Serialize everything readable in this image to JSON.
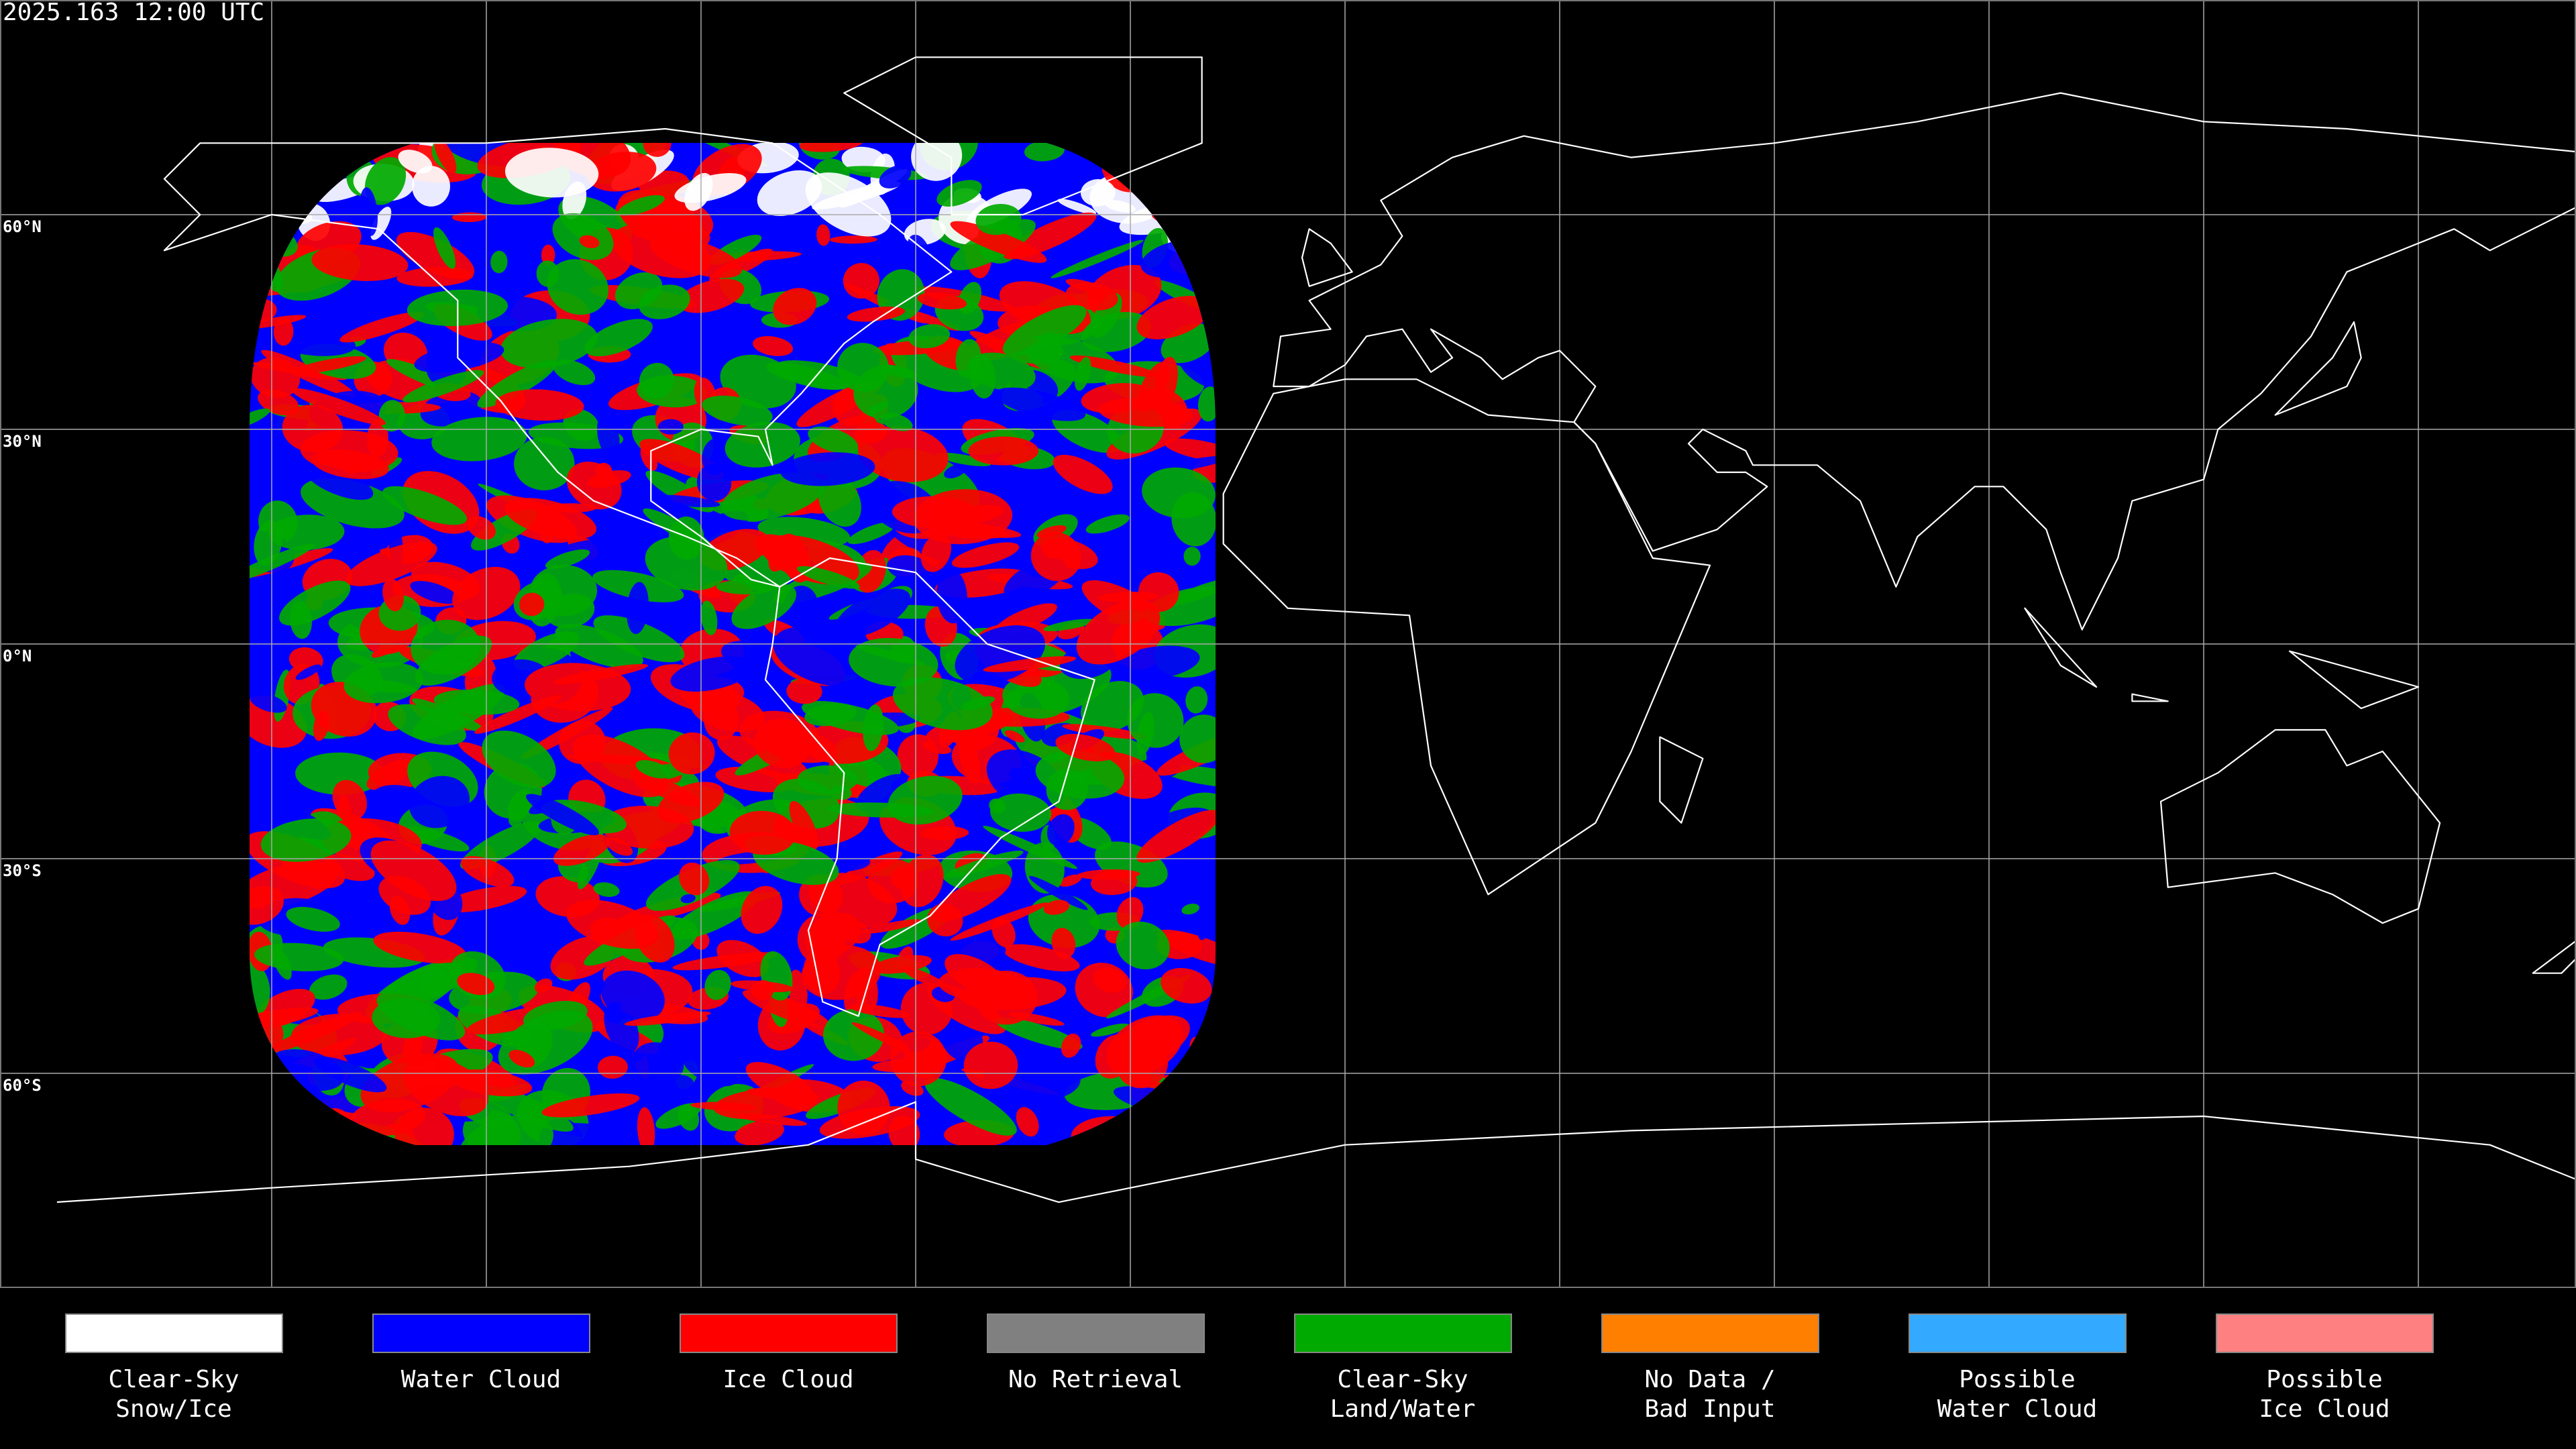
{
  "title": "2025.163 12:00 UTC",
  "latitude_labels": [
    {
      "value": 60,
      "label": "60°N"
    },
    {
      "value": 30,
      "label": "30°N"
    },
    {
      "value": 0,
      "label": "0°N"
    },
    {
      "value": -30,
      "label": "30°S"
    },
    {
      "value": -60,
      "label": "60°S"
    }
  ],
  "legend": {
    "items": [
      {
        "label": [
          "Clear-Sky",
          "Snow/Ice"
        ],
        "color": "#ffffff"
      },
      {
        "label": [
          "Water Cloud"
        ],
        "color": "#0000ff"
      },
      {
        "label": [
          "Ice Cloud"
        ],
        "color": "#ff0000"
      },
      {
        "label": [
          "No Retrieval"
        ],
        "color": "#808080"
      },
      {
        "label": [
          "Clear-Sky",
          "Land/Water"
        ],
        "color": "#00aa00"
      },
      {
        "label": [
          "No Data /",
          "Bad Input"
        ],
        "color": "#ff8000"
      },
      {
        "label": [
          "Possible",
          "Water Cloud"
        ],
        "color": "#33aaff"
      },
      {
        "label": [
          "Possible",
          "Ice Cloud"
        ],
        "color": "#ff8080"
      }
    ]
  }
}
